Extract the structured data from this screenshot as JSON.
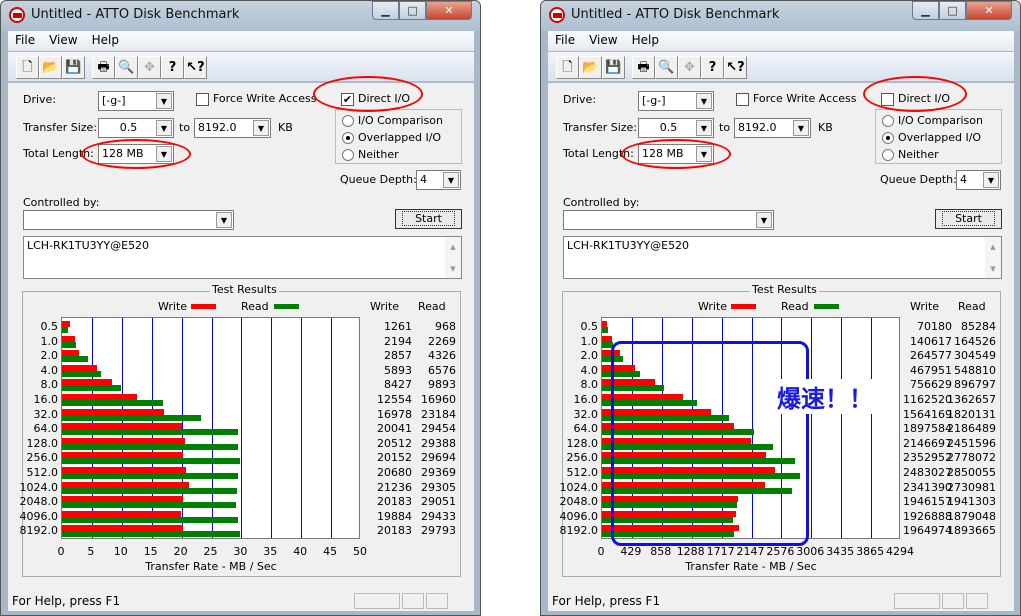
{
  "windows": [
    {
      "title": "Untitled - ATTO Disk Benchmark",
      "menu": [
        "File",
        "View",
        "Help"
      ],
      "toolbar_icons": [
        "new-icon",
        "open-icon",
        "save-icon",
        "print-icon",
        "print-preview-icon",
        "move-icon",
        "help-icon",
        "context-help-icon"
      ],
      "drive_label": "Drive:",
      "drive_value": "[-g-]",
      "force_write_label": "Force Write Access",
      "force_write_checked": false,
      "direct_io_label": "Direct I/O",
      "direct_io_checked": true,
      "transfer_size_label": "Transfer Size:",
      "transfer_from": "0.5",
      "to_label": "to",
      "transfer_to": "8192.0",
      "kb_label": "KB",
      "total_length_label": "Total Length:",
      "total_length_value": "128 MB",
      "io_options": [
        "I/O Comparison",
        "Overlapped I/O",
        "Neither"
      ],
      "io_selected": "Overlapped I/O",
      "queue_depth_label": "Queue Depth:",
      "queue_depth_value": "4",
      "controlled_by_label": "Controlled by:",
      "controlled_by_value": "",
      "start_label": "Start",
      "description": "LCH-RK1TU3YY@E520",
      "results_title": "Test Results",
      "legend_write": "Write",
      "legend_read": "Read",
      "col_write": "Write",
      "col_read": "Read",
      "status_text": "For Help, press F1",
      "annotation": ""
    },
    {
      "title": "Untitled - ATTO Disk Benchmark",
      "menu": [
        "File",
        "View",
        "Help"
      ],
      "toolbar_icons": [
        "new-icon",
        "open-icon",
        "save-icon",
        "print-icon",
        "print-preview-icon",
        "move-icon",
        "help-icon",
        "context-help-icon"
      ],
      "drive_label": "Drive:",
      "drive_value": "[-g-]",
      "force_write_label": "Force Write Access",
      "force_write_checked": false,
      "direct_io_label": "Direct I/O",
      "direct_io_checked": false,
      "transfer_size_label": "Transfer Size:",
      "transfer_from": "0.5",
      "to_label": "to",
      "transfer_to": "8192.0",
      "kb_label": "KB",
      "total_length_label": "Total Length:",
      "total_length_value": "128 MB",
      "io_options": [
        "I/O Comparison",
        "Overlapped I/O",
        "Neither"
      ],
      "io_selected": "Overlapped I/O",
      "queue_depth_label": "Queue Depth:",
      "queue_depth_value": "4",
      "controlled_by_label": "Controlled by:",
      "controlled_by_value": "",
      "start_label": "Start",
      "description": "LCH-RK1TU3YY@E520",
      "results_title": "Test Results",
      "legend_write": "Write",
      "legend_read": "Read",
      "col_write": "Write",
      "col_read": "Read",
      "status_text": "For Help, press F1",
      "annotation": "爆速！！"
    }
  ],
  "colors": {
    "write": "#ff0000",
    "read": "#008000",
    "grid": "#0000ff",
    "highlight_ellipse": "#ff0000",
    "annotation": "#1a1ae6"
  },
  "chart_data": [
    {
      "type": "bar",
      "orientation": "horizontal",
      "categories": [
        "0.5",
        "1.0",
        "2.0",
        "4.0",
        "8.0",
        "16.0",
        "32.0",
        "64.0",
        "128.0",
        "256.0",
        "512.0",
        "1024.0",
        "2048.0",
        "4096.0",
        "8192.0"
      ],
      "series": [
        {
          "name": "Write",
          "values": [
            1261,
            2194,
            2857,
            5893,
            8427,
            12554,
            16978,
            20041,
            20512,
            20152,
            20680,
            21236,
            20183,
            19884,
            20183
          ]
        },
        {
          "name": "Read",
          "values": [
            968,
            2269,
            4326,
            6576,
            9893,
            16960,
            23184,
            29454,
            29388,
            29694,
            29369,
            29305,
            29051,
            29433,
            29793
          ]
        }
      ],
      "xlabel": "Transfer Rate - MB / Sec",
      "xticks": [
        "0",
        "5",
        "10",
        "15",
        "20",
        "25",
        "30",
        "35",
        "40",
        "45",
        "50"
      ],
      "xlim": [
        0,
        50
      ],
      "grid": true,
      "legend": "top"
    },
    {
      "type": "bar",
      "orientation": "horizontal",
      "categories": [
        "0.5",
        "1.0",
        "2.0",
        "4.0",
        "8.0",
        "16.0",
        "32.0",
        "64.0",
        "128.0",
        "256.0",
        "512.0",
        "1024.0",
        "2048.0",
        "4096.0",
        "8192.0"
      ],
      "series": [
        {
          "name": "Write",
          "values": [
            70180,
            140617,
            264577,
            467951,
            756629,
            1162520,
            1564169,
            1897584,
            2146697,
            2352952,
            2483027,
            2341390,
            1946157,
            1926888,
            1964974
          ]
        },
        {
          "name": "Read",
          "values": [
            85284,
            164526,
            304549,
            548810,
            896797,
            1362657,
            1820131,
            2186489,
            2451596,
            2778072,
            2850055,
            2730981,
            1941303,
            1879048,
            1893665
          ]
        }
      ],
      "xlabel": "Transfer Rate - MB / Sec",
      "xticks": [
        "0",
        "429",
        "858",
        "1288",
        "1717",
        "2147",
        "2576",
        "3006",
        "3435",
        "3865",
        "4294"
      ],
      "xlim": [
        0,
        4294
      ],
      "grid": true,
      "legend": "top"
    }
  ]
}
